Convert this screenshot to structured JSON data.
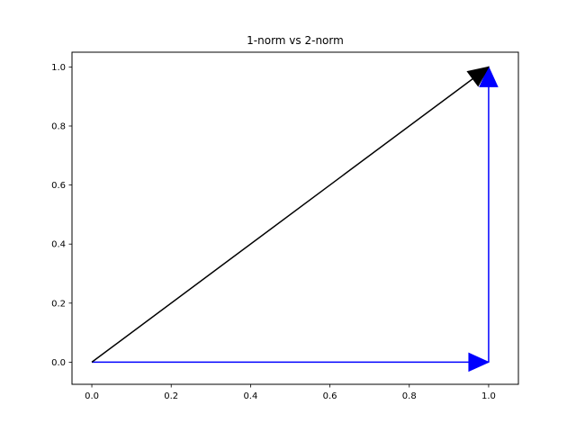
{
  "chart_data": {
    "type": "line",
    "title": "1-norm vs 2-norm",
    "xlabel": "",
    "ylabel": "",
    "xlim": [
      -0.05,
      1.075
    ],
    "ylim": [
      -0.075,
      1.05
    ],
    "xticks": [
      0.0,
      0.2,
      0.4,
      0.6,
      0.8,
      1.0
    ],
    "yticks": [
      0.0,
      0.2,
      0.4,
      0.6,
      0.8,
      1.0
    ],
    "xtick_labels": [
      "0.0",
      "0.2",
      "0.4",
      "0.6",
      "0.8",
      "1.0"
    ],
    "ytick_labels": [
      "0.0",
      "0.2",
      "0.4",
      "0.6",
      "0.8",
      "1.0"
    ],
    "grid": false,
    "legend": "none",
    "arrows": [
      {
        "x0": 0.0,
        "y0": 0.0,
        "x1": 1.0,
        "y1": 0.0,
        "color": "#0000ff"
      },
      {
        "x0": 1.0,
        "y0": 0.0,
        "x1": 1.0,
        "y1": 1.0,
        "color": "#0000ff"
      },
      {
        "x0": 0.0,
        "y0": 0.0,
        "x1": 1.0,
        "y1": 1.0,
        "color": "#000000"
      }
    ]
  }
}
